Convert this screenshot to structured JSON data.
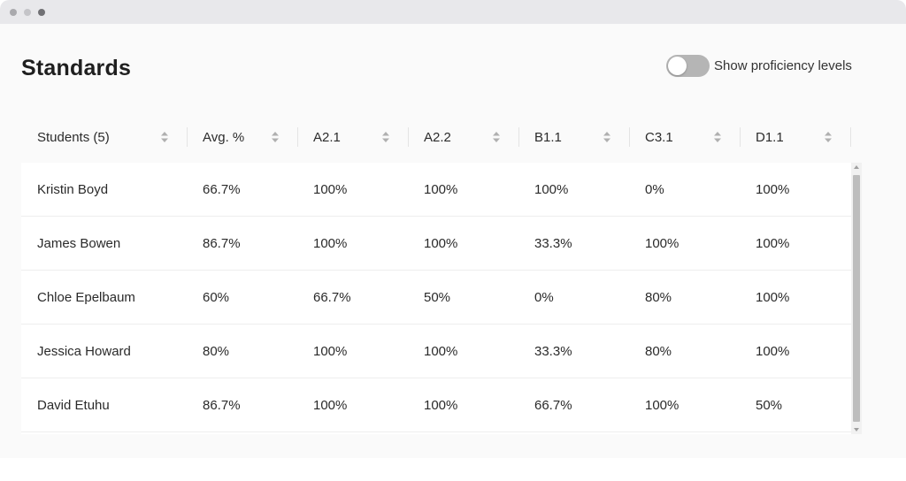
{
  "page": {
    "title": "Standards"
  },
  "toggle": {
    "label": "Show proficiency levels",
    "on": false
  },
  "table": {
    "columns": [
      {
        "key": "student",
        "label": "Students (5)"
      },
      {
        "key": "avg",
        "label": "Avg. %"
      },
      {
        "key": "a21",
        "label": "A2.1"
      },
      {
        "key": "a22",
        "label": "A2.2"
      },
      {
        "key": "b11",
        "label": "B1.1"
      },
      {
        "key": "c31",
        "label": "C3.1"
      },
      {
        "key": "d11",
        "label": "D1.1"
      }
    ],
    "rows": [
      {
        "student": "Kristin Boyd",
        "avg": "66.7%",
        "a21": "100%",
        "a22": "100%",
        "b11": "100%",
        "c31": "0%",
        "d11": "100%"
      },
      {
        "student": "James Bowen",
        "avg": "86.7%",
        "a21": "100%",
        "a22": "100%",
        "b11": "33.3%",
        "c31": "100%",
        "d11": "100%"
      },
      {
        "student": "Chloe Epelbaum",
        "avg": "60%",
        "a21": "66.7%",
        "a22": "50%",
        "b11": "0%",
        "c31": "80%",
        "d11": "100%"
      },
      {
        "student": "Jessica Howard",
        "avg": "80%",
        "a21": "100%",
        "a22": "100%",
        "b11": "33.3%",
        "c31": "80%",
        "d11": "100%"
      },
      {
        "student": "David Etuhu",
        "avg": "86.7%",
        "a21": "100%",
        "a22": "100%",
        "b11": "66.7%",
        "c31": "100%",
        "d11": "50%"
      }
    ]
  },
  "colors": {
    "toggle_off": "#b5b5b5",
    "sort_icon": "#b0b0b0",
    "divider": "#e4e4e4"
  }
}
